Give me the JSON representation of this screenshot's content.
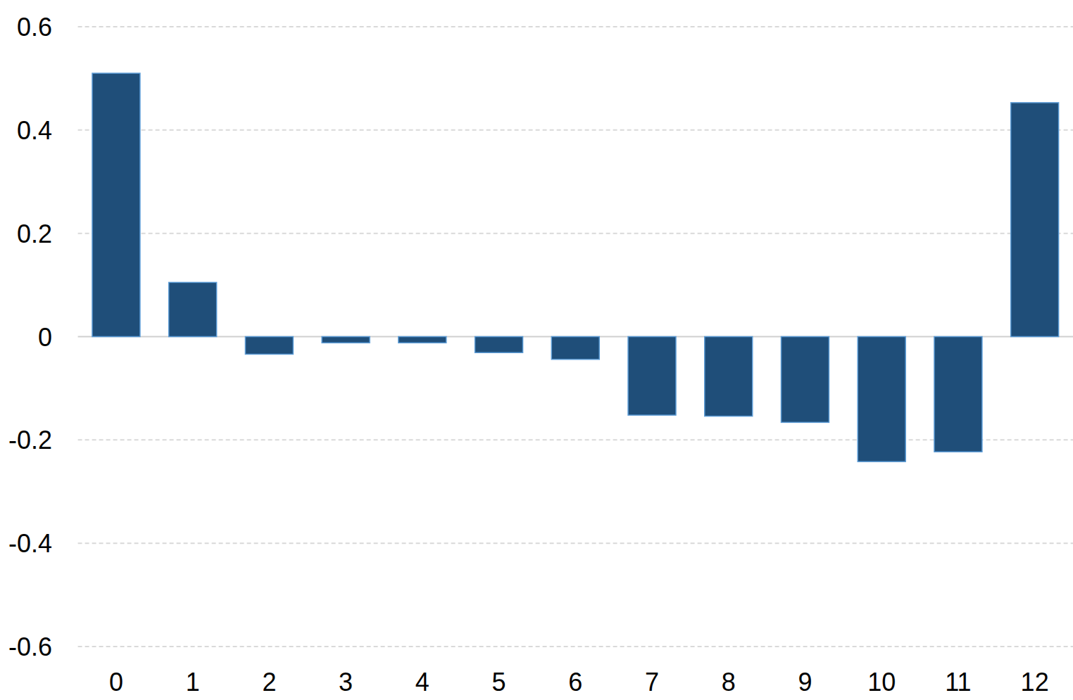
{
  "chart_data": {
    "type": "bar",
    "categories": [
      "0",
      "1",
      "2",
      "3",
      "4",
      "5",
      "6",
      "7",
      "8",
      "9",
      "10",
      "11",
      "12"
    ],
    "values": [
      0.51,
      0.105,
      -0.034,
      -0.012,
      -0.012,
      -0.031,
      -0.044,
      -0.152,
      -0.154,
      -0.166,
      -0.242,
      -0.223,
      0.453
    ],
    "color": "#1f4e79",
    "ylim": [
      -0.6,
      0.6
    ],
    "yticks": [
      -0.6,
      -0.4,
      -0.2,
      0,
      0.2,
      0.4,
      0.6
    ],
    "grid": true
  }
}
